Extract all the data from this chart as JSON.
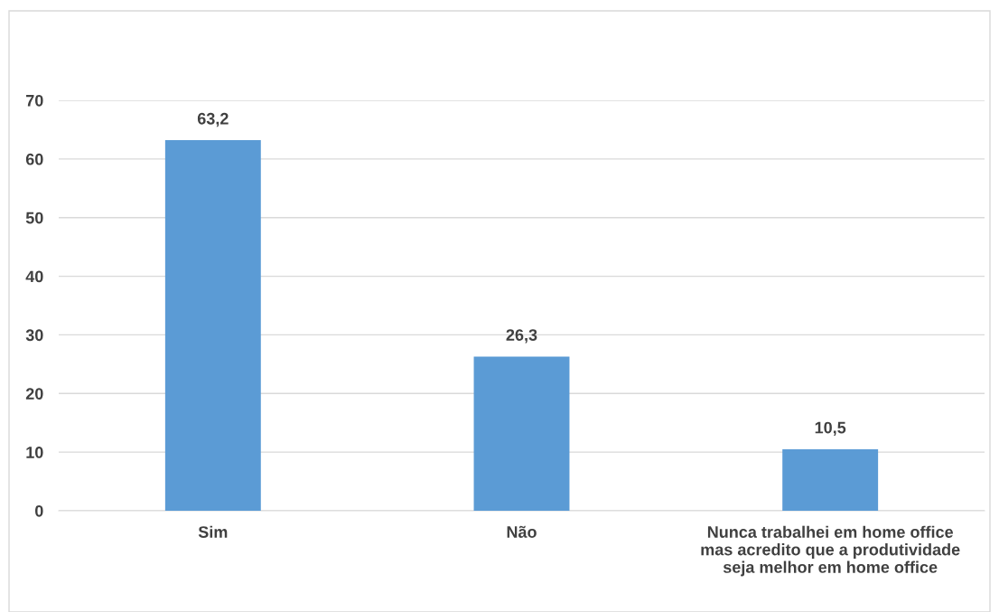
{
  "chart_data": {
    "type": "bar",
    "categories": [
      "Sim",
      "Não",
      "Nunca trabalhei em home office\nmas acredito que a produtividade\nseja melhor em home office"
    ],
    "values": [
      63.2,
      26.3,
      10.5
    ],
    "value_labels": [
      "63,2",
      "26,3",
      "10,5"
    ],
    "color": "#5b9bd5",
    "ylim": [
      0,
      70
    ],
    "yticks": [
      0,
      10,
      20,
      30,
      40,
      50,
      60,
      70
    ],
    "grid": "y",
    "legend": false
  }
}
